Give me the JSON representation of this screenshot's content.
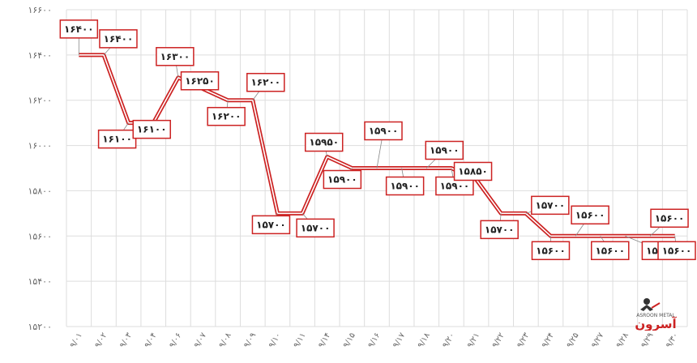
{
  "chart_data": {
    "type": "line",
    "title": "",
    "xlabel": "",
    "ylabel": "",
    "ylim": [
      15200,
      16600
    ],
    "yticks": [
      {
        "value": 15200,
        "label": "۱۵۲۰۰"
      },
      {
        "value": 15400,
        "label": "۱۵۴۰۰"
      },
      {
        "value": 15600,
        "label": "۱۵۶۰۰"
      },
      {
        "value": 15800,
        "label": "۱۵۸۰۰"
      },
      {
        "value": 16000,
        "label": "۱۶۰۰۰"
      },
      {
        "value": 16200,
        "label": "۱۶۲۰۰"
      },
      {
        "value": 16400,
        "label": "۱۶۴۰۰"
      },
      {
        "value": 16600,
        "label": "۱۶۶۰۰"
      }
    ],
    "grid": true,
    "legend": "none",
    "colors": {
      "line": "#cc2222",
      "label_border": "#cc2222",
      "grid": "#dddddd"
    },
    "categories": [
      "۹/۰۱",
      "۹/۰۲",
      "۹/۰۳",
      "۹/۰۴",
      "۹/۰۶",
      "۹/۰۷",
      "۹/۰۸",
      "۹/۰۹",
      "۹/۱۰",
      "۹/۱۱",
      "۹/۱۴",
      "۹/۱۵",
      "۹/۱۶",
      "۹/۱۷",
      "۹/۱۸",
      "۹/۲۰",
      "۹/۲۱",
      "۹/۲۲",
      "۹/۲۳",
      "۹/۲۴",
      "۹/۲۵",
      "۹/۲۷",
      "۹/۲۸",
      "۹/۲۹",
      "۹/۳۰"
    ],
    "series": [
      {
        "values": [
          16400,
          16400,
          16100,
          16100,
          16300,
          16250,
          16200,
          16200,
          15700,
          15700,
          15950,
          15900,
          15900,
          15900,
          15900,
          15900,
          15850,
          15700,
          15700,
          15600,
          15600,
          15600,
          15600,
          15600,
          15600
        ],
        "labels": [
          "۱۶۴۰۰",
          "۱۶۴۰۰",
          "۱۶۱۰۰",
          "۱۶۱۰۰",
          "۱۶۳۰۰",
          "۱۶۲۵۰",
          "۱۶۲۰۰",
          "۱۶۲۰۰",
          "۱۵۷۰۰",
          "۱۵۷۰۰",
          "۱۵۹۵۰",
          "۱۵۹۰۰",
          "۱۵۹۰۰",
          "۱۵۹۰۰",
          "۱۵۹۰۰",
          "۱۵۹۰۰",
          "۱۵۸۵۰",
          "۱۵۷۰۰",
          "۱۵۷۰۰",
          "۱۵۶۰۰",
          "۱۵۶۰۰",
          "۱۵۶۰۰",
          "۱۵۶۰۰",
          "۱۵۶۰۰",
          "۱۵۶۰۰"
        ]
      }
    ]
  },
  "logo": {
    "text": "آسرون",
    "subtext": "ASROON METAL",
    "icon": "welder-logo-icon"
  }
}
